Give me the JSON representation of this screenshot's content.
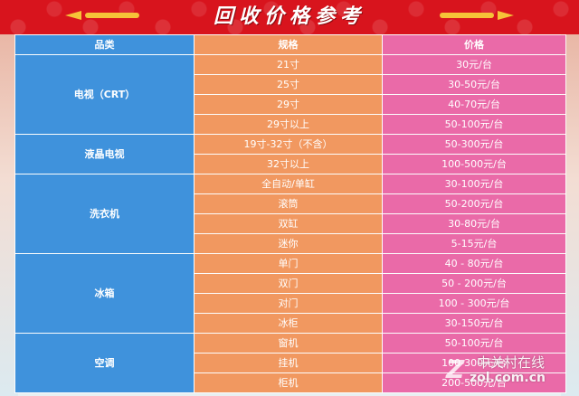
{
  "banner": {
    "title": "回收价格参考"
  },
  "table": {
    "headers": [
      "品类",
      "规格",
      "价格"
    ],
    "groups": [
      {
        "category": "电视（CRT）",
        "rows": [
          {
            "spec": "21寸",
            "price": "30元/台"
          },
          {
            "spec": "25寸",
            "price": "30-50元/台"
          },
          {
            "spec": "29寸",
            "price": "40-70元/台"
          },
          {
            "spec": "29寸以上",
            "price": "50-100元/台"
          }
        ]
      },
      {
        "category": "液晶电视",
        "rows": [
          {
            "spec": "19寸-32寸（不含）",
            "price": "50-300元/台"
          },
          {
            "spec": "32寸以上",
            "price": "100-500元/台"
          }
        ]
      },
      {
        "category": "洗衣机",
        "rows": [
          {
            "spec": "全自动/单缸",
            "price": "30-100元/台"
          },
          {
            "spec": "滚筒",
            "price": "50-200元/台"
          },
          {
            "spec": "双缸",
            "price": "30-80元/台"
          },
          {
            "spec": "迷你",
            "price": "5-15元/台"
          }
        ]
      },
      {
        "category": "冰箱",
        "rows": [
          {
            "spec": "单门",
            "price": "40 - 80元/台"
          },
          {
            "spec": "双门",
            "price": "50 - 200元/台"
          },
          {
            "spec": "对门",
            "price": "100 - 300元/台"
          },
          {
            "spec": "冰柜",
            "price": "30-150元/台"
          }
        ]
      },
      {
        "category": "空调",
        "rows": [
          {
            "spec": "窗机",
            "price": "50-100元/台"
          },
          {
            "spec": "挂机",
            "price": "100-300元/台"
          },
          {
            "spec": "柜机",
            "price": "200-500元/台"
          }
        ]
      }
    ]
  },
  "watermark": {
    "logo": "Z",
    "name": "中关村在线",
    "site": "zol.com.cn"
  },
  "colors": {
    "banner": "#d8141d",
    "category": "#3f92dc",
    "spec": "#f19860",
    "price": "#ea6aa8"
  }
}
